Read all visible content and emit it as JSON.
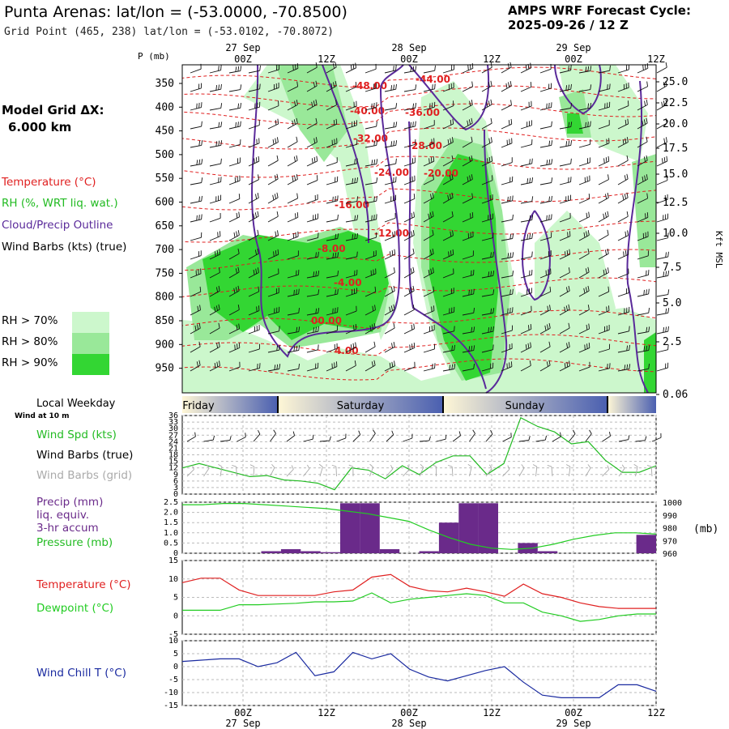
{
  "header": {
    "title": "Punta Arenas:  lat/lon = (-53.0000, -70.8500)",
    "subtitle": "Grid Point (465, 238) lat/lon = (-53.0102, -70.8072)",
    "cycle_line1": "AMPS WRF Forecast Cycle:",
    "cycle_line2": "2025-09-26 / 12  Z"
  },
  "left_panel": {
    "model_grid_line1": "Model Grid ΔX:",
    "model_grid_line2": "6.000 km",
    "legend_temperature": "Temperature (°C)",
    "legend_rh": "RH (%, WRT liq. wat.)",
    "legend_cloud": "Cloud/Precip Outline",
    "legend_wind": "Wind Barbs (kts) (true)",
    "rh_levels": [
      {
        "label": "RH > 70%",
        "color": "#ccf7cc"
      },
      {
        "label": "RH > 80%",
        "color": "#99e899"
      },
      {
        "label": "RH > 90%",
        "color": "#33d633"
      }
    ]
  },
  "colors": {
    "temperature": "#e02020",
    "rh": "#22bb22",
    "cloud_outline": "#5a2a9a",
    "precip_bar": "#6a2a8a",
    "dewpoint": "#22cc22",
    "wind_chill": "#1a2aa0",
    "wind_grid": "#aaaaaa"
  },
  "time_axis": {
    "top_dates": [
      "27 Sep",
      "28 Sep",
      "29 Sep"
    ],
    "tick_labels": [
      "00Z",
      "12Z",
      "00Z",
      "12Z",
      "00Z",
      "12Z"
    ],
    "bottom_dates": [
      "27 Sep",
      "28 Sep",
      "29 Sep"
    ],
    "weekday_title": "Local Weekday",
    "weekdays": [
      "Friday",
      "Saturday",
      "Sunday"
    ]
  },
  "cross_section": {
    "p_axis_title": "P (mb)",
    "pressure_ticks": [
      350,
      400,
      450,
      500,
      550,
      600,
      650,
      700,
      750,
      800,
      850,
      900,
      950
    ],
    "height_axis_title": "Kft MSL",
    "height_ticks": [
      "25.0",
      "22.5",
      "20.0",
      "17.5",
      "15.0",
      "12.5",
      "10.0",
      "7.5",
      "5.0",
      "2.5",
      "0.06"
    ],
    "temperature_labels": [
      "-48.00",
      "-44.00",
      "-40.00",
      "-36.00",
      "-32.00",
      "-28.00",
      "-24.00",
      "-20.00",
      "-16.00",
      "-12.00",
      "-8.00",
      "-4.00",
      "00.00",
      "4.00"
    ]
  },
  "chart_data": [
    {
      "type": "line",
      "title": "",
      "label_lines": [
        "Wind Spd (kts)",
        "Wind Barbs (true)",
        "Wind Barbs (grid)"
      ],
      "sub_label": "Wind at 10 m",
      "y_ticks": [
        "36",
        "33",
        "30",
        "27",
        "24",
        "21",
        "18",
        "15",
        "12",
        "9",
        "6",
        "3",
        "0"
      ],
      "ylim": [
        0,
        36
      ],
      "series": [
        {
          "name": "Wind Spd (kts)",
          "values": [
            12,
            14,
            12,
            10,
            8,
            8.5,
            6.5,
            6,
            5,
            2,
            12,
            11,
            7,
            13,
            9,
            14.5,
            17.5,
            17.5,
            9,
            14,
            35,
            31,
            28.5,
            23,
            24,
            15.5,
            10,
            10,
            13
          ]
        }
      ]
    },
    {
      "type": "bar",
      "title": "",
      "label_lines": [
        "Precip (mm)",
        "liq. equiv.",
        "3-hr accum",
        "Pressure (mb)"
      ],
      "y_ticks": [
        "2.5",
        "2.0",
        "1.5",
        "1.0",
        "0.5",
        "0"
      ],
      "ylim": [
        0,
        2.5
      ],
      "y2_ticks": [
        "1000",
        "990",
        "980",
        "970",
        "960"
      ],
      "y2lim": [
        960,
        1000
      ],
      "y2_unit": "(mb)",
      "series": [
        {
          "name": "Precip (mm)",
          "values": [
            0,
            0,
            0,
            0,
            0.1,
            0.2,
            0.1,
            0.05,
            2.45,
            2.45,
            0.2,
            0,
            0.1,
            1.5,
            2.45,
            2.45,
            0,
            0.5,
            0.1,
            0,
            0,
            0,
            0,
            0.9
          ]
        },
        {
          "name": "Pressure (mb)",
          "values": [
            998,
            998,
            999,
            999,
            998,
            997,
            996,
            995,
            993,
            991,
            988,
            985,
            978,
            972,
            967,
            964,
            963,
            964,
            967,
            971,
            974,
            976,
            976,
            975
          ]
        }
      ]
    },
    {
      "type": "line",
      "title": "",
      "label_lines": [
        "Temperature (°C)",
        "Dewpoint (°C)"
      ],
      "y_ticks": [
        "15",
        "10",
        "5",
        "0",
        "-5"
      ],
      "ylim": [
        -5,
        15
      ],
      "series": [
        {
          "name": "Temperature (°C)",
          "values": [
            9,
            10.2,
            10.2,
            7,
            5.5,
            5.5,
            5.5,
            5.5,
            6.5,
            7,
            10.5,
            11.2,
            8,
            6.8,
            6.5,
            7.5,
            6.5,
            5.3,
            8.6,
            6,
            5,
            3.5,
            2.5,
            2,
            2,
            2
          ]
        },
        {
          "name": "Dewpoint (°C)",
          "values": [
            1.5,
            1.5,
            1.5,
            3,
            3,
            3.2,
            3.4,
            3.8,
            3.8,
            4,
            6.2,
            3.5,
            4.5,
            5,
            5.5,
            6,
            5.5,
            3.5,
            3.5,
            1,
            0,
            -1.5,
            -1,
            0,
            0.5,
            0.5
          ]
        }
      ]
    },
    {
      "type": "line",
      "title": "",
      "label_lines": [
        "Wind Chill T (°C)"
      ],
      "y_ticks": [
        "10",
        "5",
        "0",
        "-5",
        "-10",
        "-15"
      ],
      "ylim": [
        -15,
        10
      ],
      "series": [
        {
          "name": "Wind Chill T (°C)",
          "values": [
            2,
            2.5,
            3,
            3,
            0,
            1.5,
            5.5,
            -3.5,
            -2,
            5.5,
            3,
            5,
            -1,
            -4,
            -5.5,
            -3.5,
            -1.5,
            0,
            -6,
            -11,
            -12,
            -12,
            -12,
            -7,
            -7,
            -9.5
          ]
        }
      ]
    }
  ]
}
